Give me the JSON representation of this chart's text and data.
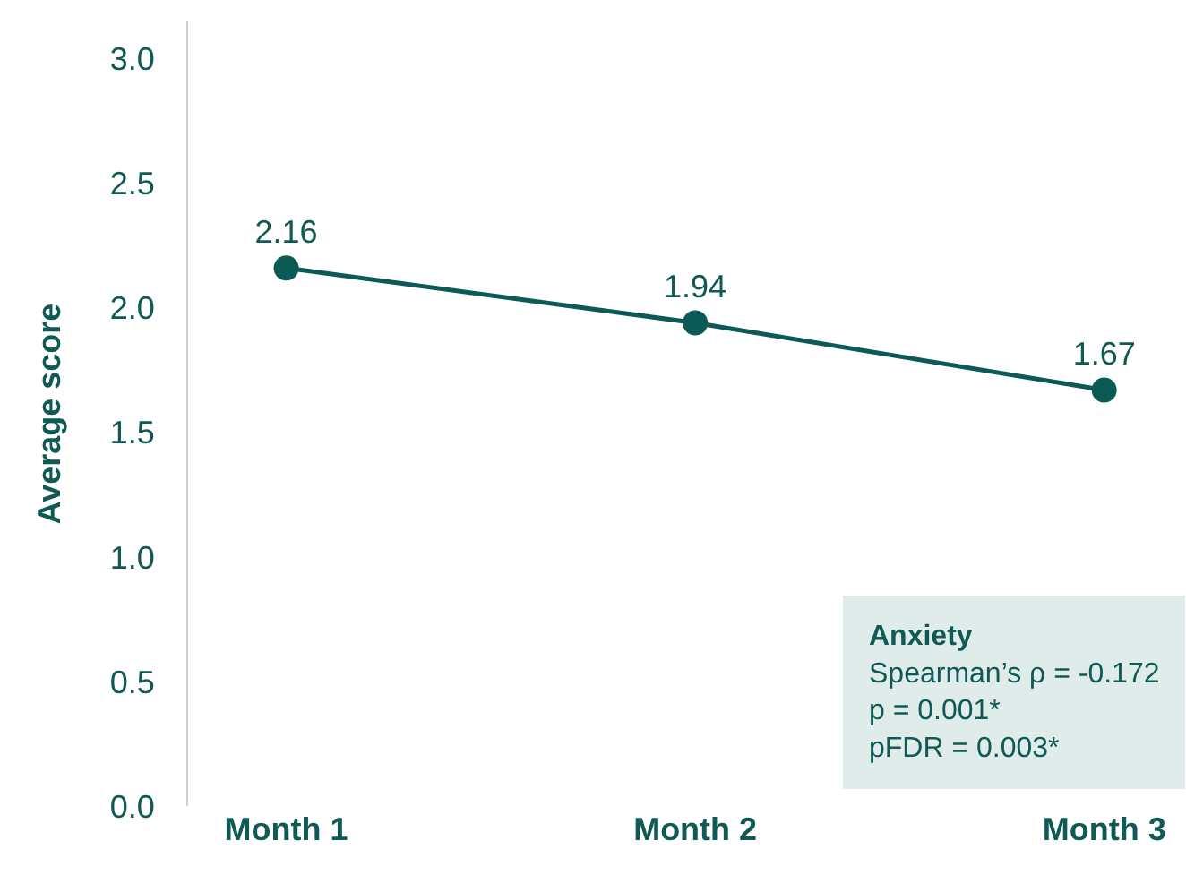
{
  "chart_data": {
    "type": "line",
    "ylabel": "Average score",
    "categories": [
      "Month 1",
      "Month 2",
      "Month 3"
    ],
    "series": [
      {
        "color": "#0b5a55",
        "values": [
          2.16,
          1.94,
          1.67
        ]
      }
    ],
    "ylim": [
      0,
      3.15
    ],
    "yticks": [
      {
        "value": 0,
        "label": "0.0"
      },
      {
        "value": 0.5,
        "label": "0.5"
      },
      {
        "value": 1,
        "label": "1.0"
      },
      {
        "value": 1.5,
        "label": "1.5"
      },
      {
        "value": 2,
        "label": "2.0"
      },
      {
        "value": 2.5,
        "label": "2.5"
      },
      {
        "value": 3,
        "label": "3.0"
      }
    ],
    "grid": false,
    "marker": "circle",
    "line_style": "solid",
    "data_labels": true,
    "annotations": [
      "Anxiety",
      "Spearman’s ρ = -0.172",
      "p = 0.001*",
      "pFDR = 0.003*"
    ]
  }
}
